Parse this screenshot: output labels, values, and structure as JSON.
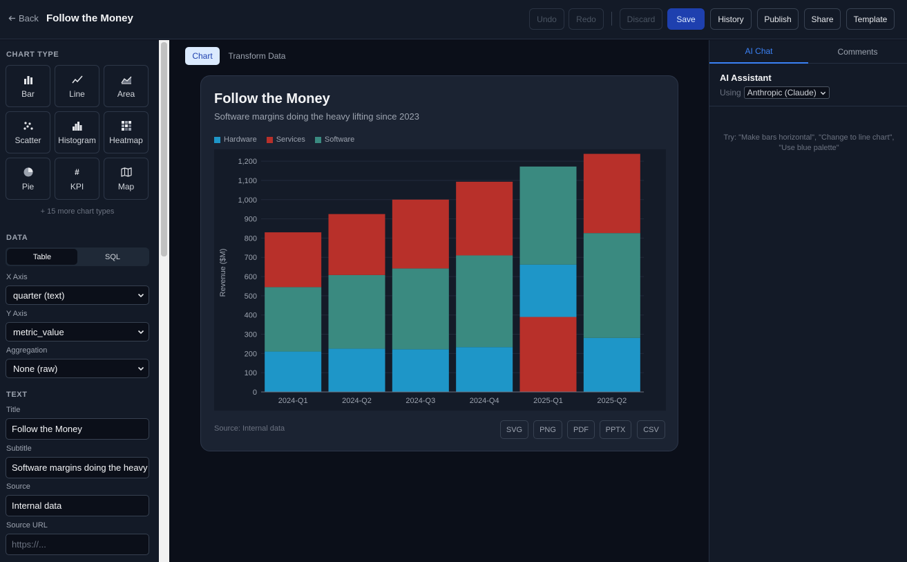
{
  "header": {
    "back_label": "Back",
    "title": "Follow the Money",
    "buttons": {
      "undo": "Undo",
      "redo": "Redo",
      "discard": "Discard",
      "save": "Save",
      "history": "History",
      "publish": "Publish",
      "share": "Share",
      "template": "Template"
    }
  },
  "sidebar": {
    "chart_type_label": "CHART TYPE",
    "chart_types": [
      {
        "label": "Bar",
        "icon": "bar-chart-icon"
      },
      {
        "label": "Line",
        "icon": "line-chart-icon"
      },
      {
        "label": "Area",
        "icon": "area-chart-icon"
      },
      {
        "label": "Scatter",
        "icon": "scatter-chart-icon"
      },
      {
        "label": "Histogram",
        "icon": "histogram-icon"
      },
      {
        "label": "Heatmap",
        "icon": "heatmap-icon"
      },
      {
        "label": "Pie",
        "icon": "pie-chart-icon"
      },
      {
        "label": "KPI",
        "icon": "hash-icon",
        "glyph": "#"
      },
      {
        "label": "Map",
        "icon": "map-icon"
      }
    ],
    "more_types": "+ 15 more chart types",
    "data_label": "DATA",
    "data_modes": [
      "Table",
      "SQL"
    ],
    "x_axis": {
      "label": "X Axis",
      "value": "quarter (text)"
    },
    "y_axis": {
      "label": "Y Axis",
      "value": "metric_value"
    },
    "aggregation": {
      "label": "Aggregation",
      "value": "None (raw)"
    },
    "text_label": "TEXT",
    "title_field": {
      "label": "Title",
      "value": "Follow the Money"
    },
    "subtitle_field": {
      "label": "Subtitle",
      "value": "Software margins doing the heavy lifting since 2023"
    },
    "source_field": {
      "label": "Source",
      "value": "Internal data"
    },
    "source_url_field": {
      "label": "Source URL",
      "placeholder": "https://..."
    }
  },
  "canvas": {
    "tabs": [
      "Chart",
      "Transform Data"
    ],
    "source_text": "Source: Internal data",
    "export_buttons": [
      "SVG",
      "PNG",
      "PDF",
      "PPTX",
      "CSV"
    ]
  },
  "chart_data": {
    "type": "bar",
    "stacked": true,
    "title": "Follow the Money",
    "subtitle": "Software margins doing the heavy lifting since 2023",
    "ylabel": "Revenue ($M)",
    "xlabel": "",
    "ylim": [
      0,
      1240
    ],
    "yticks": [
      0,
      100,
      200,
      300,
      400,
      500,
      600,
      700,
      800,
      900,
      1000,
      1100,
      1200
    ],
    "ytick_labels": [
      "0",
      "100",
      "200",
      "300",
      "400",
      "500",
      "600",
      "700",
      "800",
      "900",
      "1,000",
      "1,100",
      "1,200"
    ],
    "grid": true,
    "legend_position": "top-left",
    "categories": [
      "2024-Q1",
      "2024-Q2",
      "2024-Q3",
      "2024-Q4",
      "2025-Q1",
      "2025-Q2"
    ],
    "legend": [
      {
        "name": "Hardware",
        "color": "#1e96c8"
      },
      {
        "name": "Services",
        "color": "#b8302a"
      },
      {
        "name": "Software",
        "color": "#3a8a80"
      }
    ],
    "stacks": [
      [
        {
          "series": "Hardware",
          "value": 210
        },
        {
          "series": "Software",
          "value": 335
        },
        {
          "series": "Services",
          "value": 285
        }
      ],
      [
        {
          "series": "Hardware",
          "value": 225
        },
        {
          "series": "Software",
          "value": 383
        },
        {
          "series": "Services",
          "value": 317
        }
      ],
      [
        {
          "series": "Hardware",
          "value": 222
        },
        {
          "series": "Software",
          "value": 420
        },
        {
          "series": "Services",
          "value": 358
        }
      ],
      [
        {
          "series": "Hardware",
          "value": 233
        },
        {
          "series": "Software",
          "value": 477
        },
        {
          "series": "Services",
          "value": 383
        }
      ],
      [
        {
          "series": "Services",
          "value": 390
        },
        {
          "series": "Hardware",
          "value": 272
        },
        {
          "series": "Software",
          "value": 510
        }
      ],
      [
        {
          "series": "Hardware",
          "value": 281
        },
        {
          "series": "Software",
          "value": 545
        },
        {
          "series": "Services",
          "value": 412
        }
      ]
    ]
  },
  "right_panel": {
    "tabs": [
      "AI Chat",
      "Comments"
    ],
    "title": "AI Assistant",
    "using_label": "Using",
    "provider": "Anthropic (Claude)",
    "hint": "Try: \"Make bars horizontal\", \"Change to line chart\", \"Use blue palette\""
  }
}
